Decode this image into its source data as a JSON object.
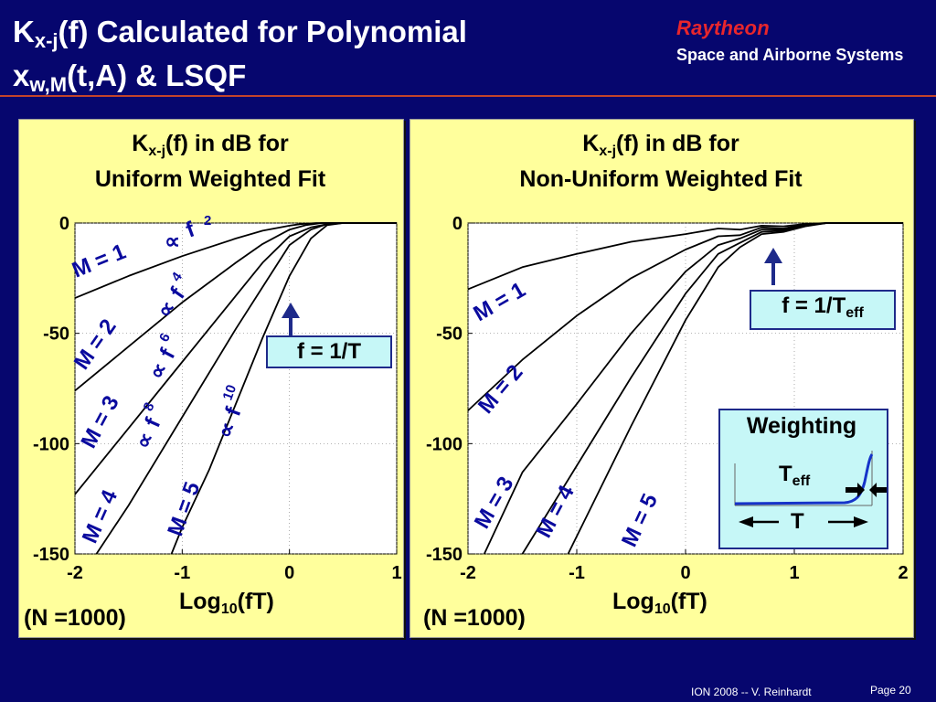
{
  "header": {
    "title_K": "K",
    "title_Ksub": "x-j",
    "title_line1_rest": "(f) Calculated for Polynomial",
    "title_x": "x",
    "title_xsub": "w,M",
    "title_line2_rest": "(t,A) & LSQF",
    "brand": "Raytheon",
    "division": "Space and Airborne Systems"
  },
  "colors": {
    "background": "#06066e",
    "panel": "#ffff9c",
    "callout": "#c6f7f7",
    "brand_red": "#e8262c",
    "accent_blue": "#1e2a8a"
  },
  "panels": {
    "left": {
      "title_K": "K",
      "title_sub": "x-j",
      "title_rest": "(f) in dB for",
      "title_line2": "Uniform Weighted Fit",
      "xlabel_main": "Log",
      "xlabel_sub": "10",
      "xlabel_rest": "(fT)",
      "note": "(N =1000)",
      "callout": "f = 1/T",
      "proportional_labels": [
        {
          "sym": "∝",
          "f": "f",
          "exp": "2"
        },
        {
          "sym": "∝",
          "f": "f",
          "exp": "4"
        },
        {
          "sym": "∝",
          "f": "f",
          "exp": "6"
        },
        {
          "sym": "∝",
          "f": "f",
          "exp": "8"
        },
        {
          "sym": "∝",
          "f": "f",
          "exp": "10"
        }
      ]
    },
    "right": {
      "title_K": "K",
      "title_sub": "x-j",
      "title_rest": "(f) in dB for",
      "title_line2": "Non-Uniform Weighted Fit",
      "xlabel_main": "Log",
      "xlabel_sub": "10",
      "xlabel_rest": "(fT)",
      "note": "(N =1000)",
      "callout_main": "f = 1/T",
      "callout_sub": "eff",
      "weighting": {
        "title": "Weighting",
        "teff_main": "T",
        "teff_sub": "eff",
        "t_label": "T"
      }
    }
  },
  "chart_data": [
    {
      "type": "line",
      "title": "Kx-j(f) in dB for Uniform Weighted Fit",
      "xlabel": "Log10(fT)",
      "ylabel": "",
      "xlim": [
        -2,
        1
      ],
      "ylim": [
        -150,
        0
      ],
      "xticks": [
        -2,
        -1,
        0,
        1
      ],
      "xtick_labels": [
        "-2",
        "-1",
        "0",
        "1"
      ],
      "yticks": [
        0,
        -50,
        -100,
        -150
      ],
      "ytick_labels": [
        "0",
        "-50",
        "-100",
        "-150"
      ],
      "grid": true,
      "series": [
        {
          "name": "M = 1",
          "x": [
            -2.0,
            -1.5,
            -1.0,
            -0.5,
            -0.25,
            0.0,
            0.1,
            0.25,
            0.5,
            1.0
          ],
          "y": [
            -34,
            -24,
            -15,
            -7,
            -3.5,
            -1.2,
            -0.5,
            0,
            0,
            0
          ]
        },
        {
          "name": "M = 2",
          "x": [
            -2.0,
            -1.5,
            -1.0,
            -0.5,
            -0.25,
            0.0,
            0.15,
            0.3,
            0.5,
            1.0
          ],
          "y": [
            -76,
            -56,
            -36,
            -18,
            -9.5,
            -3,
            -1,
            0,
            0,
            0
          ]
        },
        {
          "name": "M = 3",
          "x": [
            -2.0,
            -1.5,
            -1.0,
            -0.5,
            -0.25,
            0.0,
            0.2,
            0.35,
            0.5,
            1.0
          ],
          "y": [
            -123,
            -93,
            -63,
            -33,
            -18,
            -6,
            -2,
            -0.5,
            0,
            0
          ]
        },
        {
          "name": "M = 4",
          "x": [
            -1.8,
            -1.5,
            -1.0,
            -0.5,
            -0.25,
            0.0,
            0.2,
            0.35,
            0.5,
            1.0
          ],
          "y": [
            -150,
            -128,
            -88,
            -48,
            -29,
            -10,
            -3,
            -0.5,
            0,
            0
          ]
        },
        {
          "name": "M = 5",
          "x": [
            -1.1,
            -1.0,
            -0.75,
            -0.5,
            -0.25,
            0.0,
            0.2,
            0.35,
            0.5,
            1.0
          ],
          "y": [
            -150,
            -138,
            -112,
            -82,
            -52,
            -24,
            -7,
            -1,
            0,
            0
          ]
        }
      ],
      "annotations": [
        "M = 1",
        "M = 2",
        "M = 3",
        "M = 4",
        "M = 5"
      ]
    },
    {
      "type": "line",
      "title": "Kx-j(f) in dB for Non-Uniform Weighted Fit",
      "xlabel": "Log10(fT)",
      "ylabel": "",
      "xlim": [
        -2,
        2
      ],
      "ylim": [
        -150,
        0
      ],
      "xticks": [
        -2,
        -1,
        0,
        1,
        2
      ],
      "xtick_labels": [
        "-2",
        "-1",
        "0",
        "1",
        "2"
      ],
      "yticks": [
        0,
        -50,
        -100,
        -150
      ],
      "ytick_labels": [
        "0",
        "-50",
        "-100",
        "-150"
      ],
      "grid": true,
      "series": [
        {
          "name": "M = 1",
          "x": [
            -2.0,
            -1.5,
            -1.0,
            -0.5,
            0.0,
            0.3,
            0.5,
            0.7,
            0.9,
            1.1,
            1.3,
            2.0
          ],
          "y": [
            -30,
            -20,
            -14,
            -8.5,
            -5,
            -2.5,
            -3,
            -1.2,
            -1.5,
            -0.4,
            0,
            0
          ]
        },
        {
          "name": "M = 2",
          "x": [
            -2.0,
            -1.5,
            -1.0,
            -0.5,
            0.0,
            0.3,
            0.5,
            0.7,
            0.9,
            1.1,
            1.3,
            2.0
          ],
          "y": [
            -85,
            -62,
            -42,
            -25,
            -12,
            -6,
            -5.5,
            -2,
            -2.5,
            -0.5,
            0,
            0
          ]
        },
        {
          "name": "M = 3",
          "x": [
            -1.85,
            -1.5,
            -1.0,
            -0.5,
            0.0,
            0.3,
            0.5,
            0.7,
            0.9,
            1.1,
            1.3,
            2.0
          ],
          "y": [
            -150,
            -113,
            -82,
            -50,
            -22,
            -10,
            -7,
            -3,
            -3,
            -1,
            0,
            0
          ]
        },
        {
          "name": "M = 4",
          "x": [
            -1.5,
            -1.0,
            -0.5,
            0.0,
            0.3,
            0.5,
            0.7,
            0.9,
            1.1,
            1.3,
            2.0
          ],
          "y": [
            -150,
            -110,
            -70,
            -32,
            -14,
            -9,
            -4,
            -3.5,
            -1,
            0,
            0
          ]
        },
        {
          "name": "M = 5",
          "x": [
            -1.08,
            -0.5,
            0.0,
            0.3,
            0.5,
            0.7,
            0.9,
            1.1,
            1.3,
            2.0
          ],
          "y": [
            -150,
            -92,
            -44,
            -20,
            -11,
            -5,
            -4,
            -1.5,
            0,
            0
          ]
        }
      ],
      "annotations": [
        "M = 1",
        "M = 2",
        "M = 3",
        "M = 4",
        "M = 5"
      ]
    }
  ]
}
